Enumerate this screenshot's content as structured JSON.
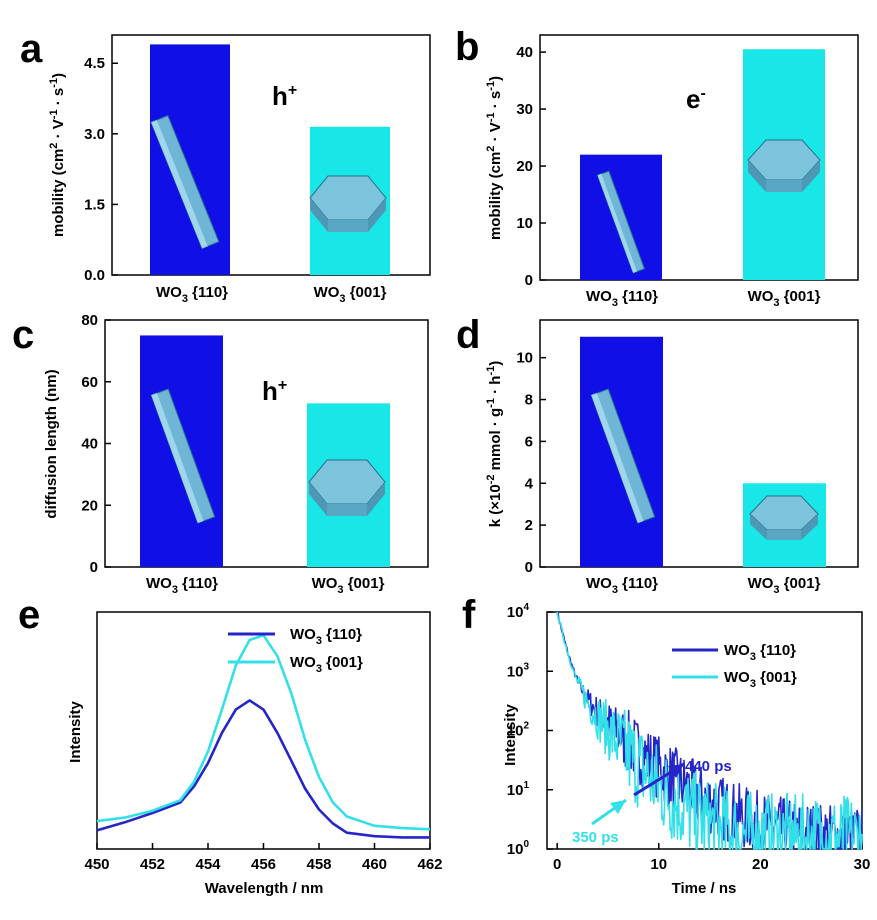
{
  "colors": {
    "wo3_110": "#1010e6",
    "wo3_001": "#19e6e6",
    "line_110": "#2626c8",
    "line_001": "#33e0e8",
    "rod": "#6fb6d6",
    "plate": "#7cc4dc"
  },
  "chart_data": [
    {
      "panel": "a",
      "type": "bar",
      "categories": [
        "WO3 {110}",
        "WO3 {001}"
      ],
      "values": [
        4.9,
        3.15
      ],
      "ylabel": "mobility (cm2 · V-1 · s-1)",
      "ylim": [
        0,
        5.1
      ],
      "yticks": [
        "0.0",
        "1.5",
        "3.0",
        "4.5"
      ],
      "annotation": "h+"
    },
    {
      "panel": "b",
      "type": "bar",
      "categories": [
        "WO3 {110}",
        "WO3 {001}"
      ],
      "values": [
        22,
        40.5
      ],
      "ylabel": "mobility (cm2 · V-1 · s-1)",
      "ylim": [
        0,
        43
      ],
      "yticks": [
        "0",
        "10",
        "20",
        "30",
        "40"
      ],
      "annotation": "e-"
    },
    {
      "panel": "c",
      "type": "bar",
      "categories": [
        "WO3 {110}",
        "WO3 {001}"
      ],
      "values": [
        75,
        53
      ],
      "ylabel": "diffusion length (nm)",
      "ylim": [
        0,
        80
      ],
      "yticks": [
        "0",
        "20",
        "40",
        "60",
        "80"
      ],
      "annotation": "h+"
    },
    {
      "panel": "d",
      "type": "bar",
      "categories": [
        "WO3 {110}",
        "WO3 {001}"
      ],
      "values": [
        11,
        4
      ],
      "ylabel": "k (×10-2 mmol · g-1 · h-1)",
      "ylim": [
        0,
        11.8
      ],
      "yticks": [
        "0",
        "2",
        "4",
        "6",
        "8",
        "10"
      ],
      "annotation": ""
    },
    {
      "panel": "e",
      "type": "line",
      "xlabel": "Wavelength / nm",
      "ylabel": "Intensity",
      "xlim": [
        450,
        462
      ],
      "xticks": [
        "450",
        "452",
        "454",
        "456",
        "458",
        "460",
        "462"
      ],
      "series": [
        {
          "name": "WO3  {110}",
          "x": [
            450,
            451,
            452,
            453,
            453.5,
            454,
            454.5,
            455,
            455.5,
            456,
            456.5,
            457,
            457.5,
            458,
            458.5,
            459,
            460,
            461,
            462
          ],
          "y": [
            0.08,
            0.115,
            0.155,
            0.2,
            0.27,
            0.37,
            0.5,
            0.6,
            0.64,
            0.6,
            0.5,
            0.38,
            0.26,
            0.17,
            0.11,
            0.07,
            0.055,
            0.05,
            0.05
          ]
        },
        {
          "name": "WO3  {001}",
          "x": [
            450,
            451,
            452,
            453,
            453.5,
            454,
            454.5,
            455,
            455.5,
            456,
            456.5,
            457,
            457.5,
            458,
            458.5,
            459,
            460,
            461,
            462
          ],
          "y": [
            0.12,
            0.135,
            0.165,
            0.21,
            0.29,
            0.42,
            0.6,
            0.79,
            0.9,
            0.92,
            0.83,
            0.67,
            0.47,
            0.31,
            0.2,
            0.14,
            0.1,
            0.09,
            0.085
          ]
        }
      ]
    },
    {
      "panel": "f",
      "type": "line",
      "xlabel": "Time / ns",
      "ylabel": "Intensity",
      "xlim": [
        -1,
        30
      ],
      "ylim_log10": [
        0,
        4
      ],
      "xticks": [
        "0",
        "10",
        "20",
        "30"
      ],
      "yticks": [
        "10^0",
        "10^1",
        "10^2",
        "10^3",
        "10^4"
      ],
      "series": [
        {
          "name": "WO3 {110}",
          "lifetime_ns": 0.44
        },
        {
          "name": "WO3 {001}",
          "lifetime_ns": 0.35
        }
      ],
      "annotations": [
        "440 ps",
        "350 ps"
      ]
    }
  ]
}
